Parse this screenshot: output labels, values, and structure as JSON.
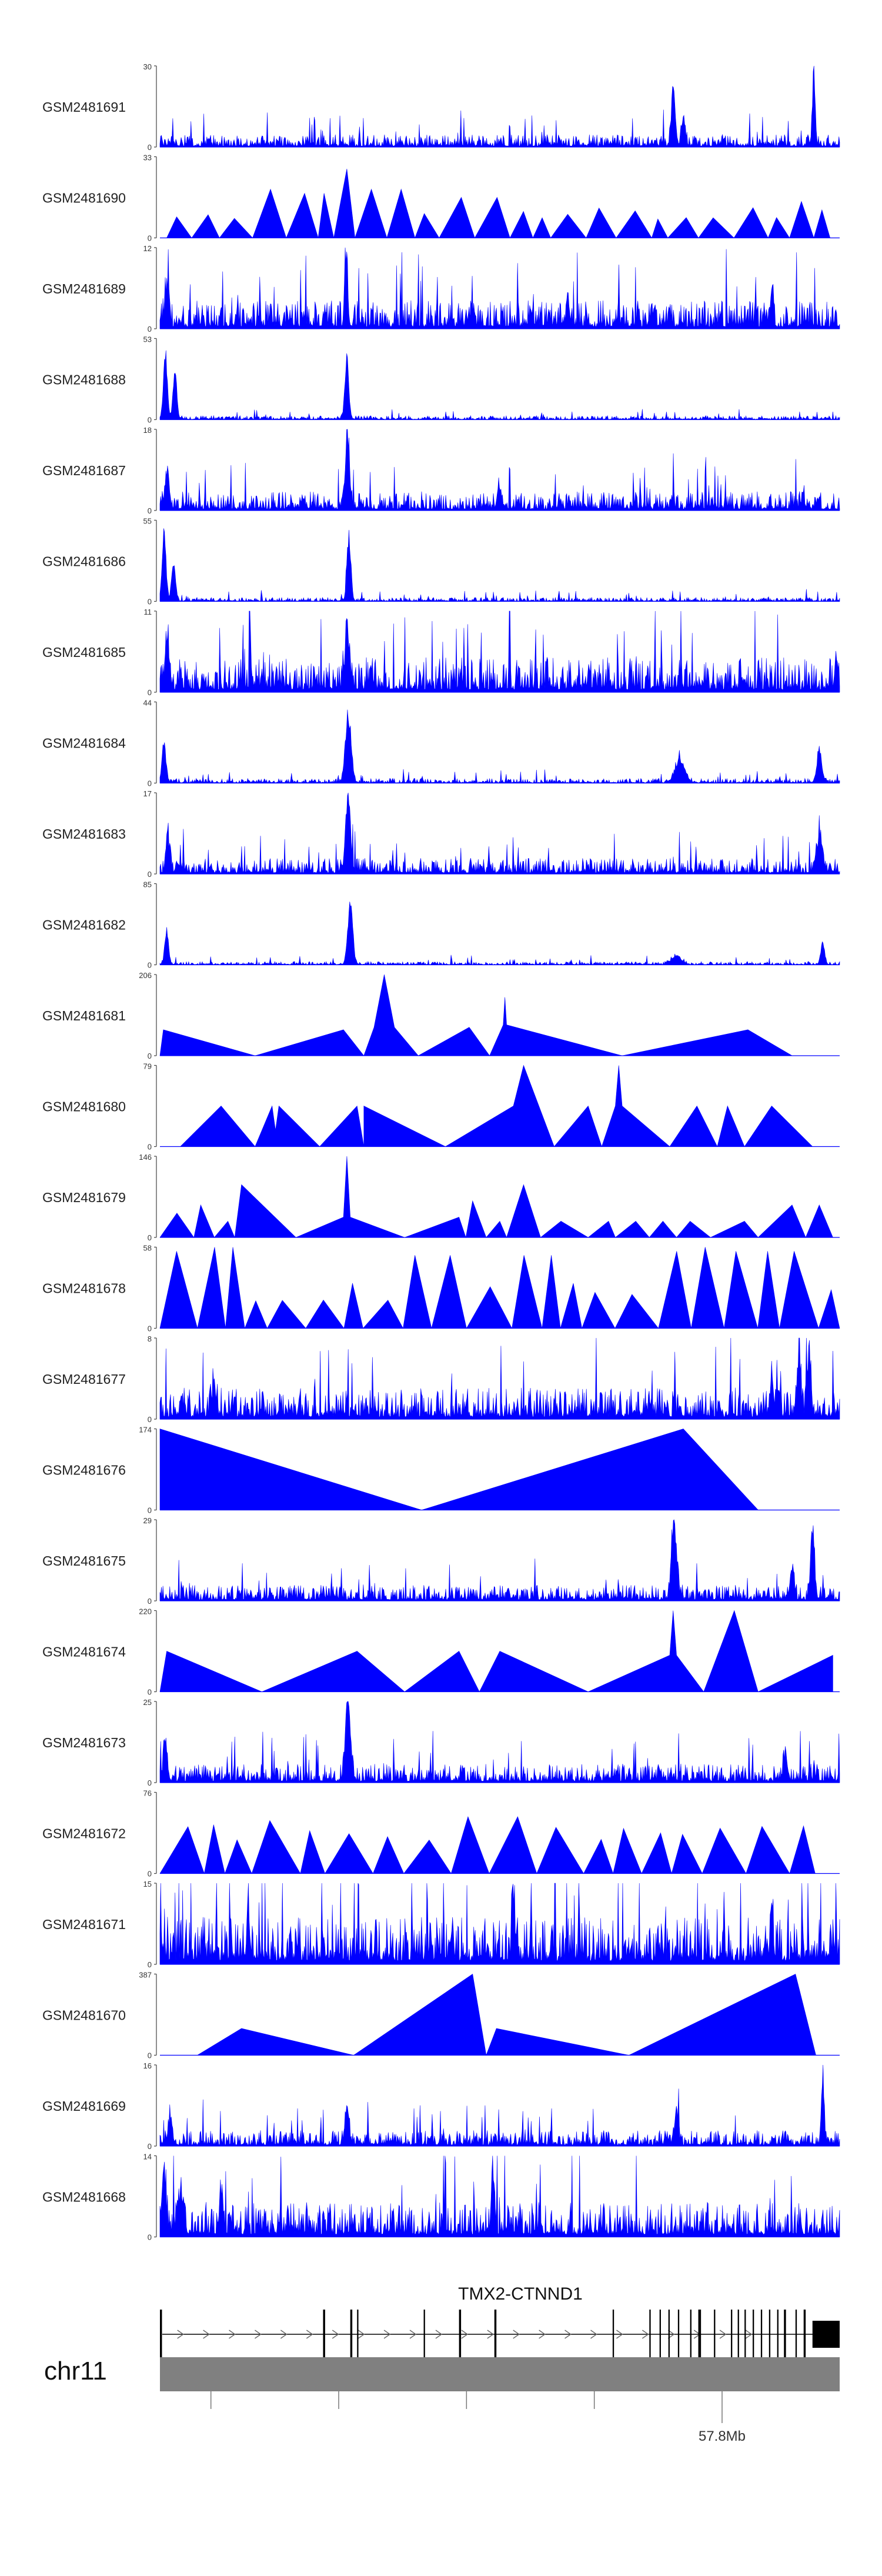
{
  "chart_data": {
    "type": "area",
    "title": "",
    "fill_color": "#0000ff",
    "tracks": [
      {
        "name": "GSM2481691",
        "ymax": 30,
        "profile": "spiky",
        "seed": 11,
        "baseline": 0.08,
        "peaks": [
          [
            0.755,
            0.75,
            0.004
          ],
          [
            0.962,
            1.0,
            0.003
          ],
          [
            0.77,
            0.35,
            0.004
          ]
        ]
      },
      {
        "name": "GSM2481690",
        "ymax": 33,
        "profile": "triangles",
        "seed": 12,
        "start": 0.01,
        "end": 1.0,
        "spacing": 0.035,
        "base_level": 0.3,
        "peaks": [
          [
            0.27,
            1.0
          ],
          [
            0.3,
            0.85
          ],
          [
            0.34,
            0.6
          ],
          [
            0.165,
            0.6
          ],
          [
            0.22,
            0.55
          ],
          [
            0.46,
            0.5
          ],
          [
            0.94,
            0.45
          ]
        ]
      },
      {
        "name": "GSM2481689",
        "ymax": 12,
        "profile": "spiky",
        "seed": 13,
        "baseline": 0.18,
        "peaks": [
          [
            0.274,
            1.0,
            0.003
          ],
          [
            0.01,
            0.55,
            0.004
          ],
          [
            0.6,
            0.45,
            0.003
          ],
          [
            0.9,
            0.4,
            0.003
          ]
        ]
      },
      {
        "name": "GSM2481688",
        "ymax": 53,
        "profile": "spiky",
        "seed": 14,
        "baseline": 0.025,
        "peaks": [
          [
            0.008,
            0.9,
            0.004
          ],
          [
            0.022,
            0.6,
            0.004
          ],
          [
            0.275,
            0.85,
            0.004
          ]
        ]
      },
      {
        "name": "GSM2481687",
        "ymax": 18,
        "profile": "spiky",
        "seed": 15,
        "baseline": 0.12,
        "peaks": [
          [
            0.276,
            1.0,
            0.004
          ],
          [
            0.01,
            0.5,
            0.004
          ],
          [
            0.5,
            0.3,
            0.004
          ]
        ]
      },
      {
        "name": "GSM2481686",
        "ymax": 55,
        "profile": "spiky",
        "seed": 16,
        "baseline": 0.025,
        "peaks": [
          [
            0.006,
            0.95,
            0.004
          ],
          [
            0.02,
            0.55,
            0.004
          ],
          [
            0.278,
            0.9,
            0.004
          ]
        ]
      },
      {
        "name": "GSM2481685",
        "ymax": 11,
        "profile": "spiky",
        "seed": 17,
        "baseline": 0.22,
        "peaks": [
          [
            0.275,
            0.85,
            0.004
          ],
          [
            0.01,
            0.7,
            0.004
          ],
          [
            0.995,
            0.45,
            0.003
          ]
        ]
      },
      {
        "name": "GSM2481684",
        "ymax": 44,
        "profile": "spiky",
        "seed": 18,
        "baseline": 0.03,
        "peaks": [
          [
            0.277,
            0.9,
            0.006
          ],
          [
            0.006,
            0.55,
            0.004
          ],
          [
            0.765,
            0.3,
            0.01
          ],
          [
            0.97,
            0.42,
            0.005
          ]
        ]
      },
      {
        "name": "GSM2481683",
        "ymax": 17,
        "profile": "spiky",
        "seed": 19,
        "baseline": 0.1,
        "peaks": [
          [
            0.277,
            1.0,
            0.005
          ],
          [
            0.012,
            0.45,
            0.004
          ],
          [
            0.97,
            0.45,
            0.006
          ]
        ]
      },
      {
        "name": "GSM2481682",
        "ymax": 85,
        "profile": "spiky",
        "seed": 20,
        "baseline": 0.02,
        "peaks": [
          [
            0.28,
            0.9,
            0.005
          ],
          [
            0.01,
            0.45,
            0.004
          ],
          [
            0.76,
            0.12,
            0.01
          ],
          [
            0.975,
            0.3,
            0.004
          ]
        ]
      },
      {
        "name": "GSM2481681",
        "ymax": 206,
        "profile": "polyline",
        "points": [
          [
            0.0,
            0.0
          ],
          [
            0.005,
            0.32
          ],
          [
            0.14,
            0.0
          ],
          [
            0.27,
            0.32
          ],
          [
            0.3,
            0.0
          ],
          [
            0.315,
            0.35
          ],
          [
            0.33,
            1.0
          ],
          [
            0.345,
            0.35
          ],
          [
            0.38,
            0.0
          ],
          [
            0.455,
            0.35
          ],
          [
            0.485,
            0.0
          ],
          [
            0.505,
            0.38
          ],
          [
            0.5075,
            0.72
          ],
          [
            0.51,
            0.38
          ],
          [
            0.68,
            0.0
          ],
          [
            0.865,
            0.32
          ],
          [
            0.93,
            0.0
          ]
        ]
      },
      {
        "name": "GSM2481680",
        "ymax": 79,
        "profile": "polyline",
        "points": [
          [
            0.0,
            0.0
          ],
          [
            0.03,
            0.0
          ],
          [
            0.09,
            0.5
          ],
          [
            0.14,
            0.0
          ],
          [
            0.165,
            0.5
          ],
          [
            0.17,
            0.2
          ],
          [
            0.175,
            0.5
          ],
          [
            0.235,
            0.0
          ],
          [
            0.29,
            0.5
          ],
          [
            0.3,
            0.0
          ],
          [
            0.3,
            0.5
          ],
          [
            0.42,
            0.0
          ],
          [
            0.52,
            0.5
          ],
          [
            0.535,
            1.0
          ],
          [
            0.58,
            0.0
          ],
          [
            0.63,
            0.5
          ],
          [
            0.65,
            0.0
          ],
          [
            0.67,
            0.5
          ],
          [
            0.675,
            1.0
          ],
          [
            0.68,
            0.5
          ],
          [
            0.75,
            0.0
          ],
          [
            0.79,
            0.5
          ],
          [
            0.82,
            0.0
          ],
          [
            0.835,
            0.5
          ],
          [
            0.86,
            0.0
          ],
          [
            0.9,
            0.5
          ],
          [
            0.96,
            0.0
          ]
        ]
      },
      {
        "name": "GSM2481679",
        "ymax": 146,
        "profile": "polyline",
        "points": [
          [
            0.0,
            0.0
          ],
          [
            0.025,
            0.3
          ],
          [
            0.05,
            0.0
          ],
          [
            0.06,
            0.4
          ],
          [
            0.08,
            0.0
          ],
          [
            0.1,
            0.2
          ],
          [
            0.11,
            0.0
          ],
          [
            0.12,
            0.65
          ],
          [
            0.2,
            0.0
          ],
          [
            0.27,
            0.25
          ],
          [
            0.275,
            1.0
          ],
          [
            0.28,
            0.25
          ],
          [
            0.36,
            0.0
          ],
          [
            0.44,
            0.25
          ],
          [
            0.45,
            0.0
          ],
          [
            0.46,
            0.45
          ],
          [
            0.48,
            0.0
          ],
          [
            0.5,
            0.2
          ],
          [
            0.51,
            0.0
          ],
          [
            0.535,
            0.65
          ],
          [
            0.56,
            0.0
          ],
          [
            0.59,
            0.2
          ],
          [
            0.63,
            0.0
          ],
          [
            0.66,
            0.2
          ],
          [
            0.67,
            0.0
          ],
          [
            0.7,
            0.2
          ],
          [
            0.72,
            0.0
          ],
          [
            0.74,
            0.2
          ],
          [
            0.76,
            0.0
          ],
          [
            0.78,
            0.2
          ],
          [
            0.81,
            0.0
          ],
          [
            0.86,
            0.2
          ],
          [
            0.88,
            0.0
          ],
          [
            0.93,
            0.4
          ],
          [
            0.95,
            0.0
          ],
          [
            0.97,
            0.4
          ],
          [
            0.99,
            0.0
          ]
        ]
      },
      {
        "name": "GSM2481678",
        "ymax": 58,
        "profile": "triangles",
        "seed": 21,
        "start": 0.0,
        "end": 1.0,
        "spacing": 0.045,
        "base_level": 0.45,
        "peaks": [
          [
            0.03,
            0.95
          ],
          [
            0.1,
            1.0
          ],
          [
            0.4,
            0.9
          ],
          [
            0.56,
            0.9
          ],
          [
            0.78,
            0.95
          ],
          [
            0.81,
            1.0
          ],
          [
            0.88,
            0.95
          ]
        ]
      },
      {
        "name": "GSM2481677",
        "ymax": 8,
        "profile": "spiky",
        "seed": 22,
        "baseline": 0.2,
        "peaks": [
          [
            0.94,
            0.85,
            0.004
          ],
          [
            0.955,
            0.75,
            0.004
          ],
          [
            0.9,
            0.5,
            0.004
          ],
          [
            0.08,
            0.4,
            0.004
          ]
        ]
      },
      {
        "name": "GSM2481676",
        "ymax": 174,
        "profile": "polyline",
        "points": [
          [
            0.0,
            0.0
          ],
          [
            0.0,
            1.0
          ],
          [
            0.385,
            0.0
          ],
          [
            0.77,
            1.0
          ],
          [
            0.88,
            0.0
          ]
        ]
      },
      {
        "name": "GSM2481675",
        "ymax": 29,
        "profile": "spiky",
        "seed": 23,
        "baseline": 0.1,
        "peaks": [
          [
            0.755,
            0.95,
            0.004
          ],
          [
            0.96,
            0.95,
            0.004
          ],
          [
            0.76,
            0.45,
            0.004
          ],
          [
            0.93,
            0.35,
            0.004
          ]
        ]
      },
      {
        "name": "GSM2481674",
        "ymax": 220,
        "profile": "polyline",
        "points": [
          [
            0.0,
            0.0
          ],
          [
            0.01,
            0.5
          ],
          [
            0.15,
            0.0
          ],
          [
            0.29,
            0.5
          ],
          [
            0.36,
            0.0
          ],
          [
            0.44,
            0.5
          ],
          [
            0.47,
            0.0
          ],
          [
            0.5,
            0.5
          ],
          [
            0.63,
            0.0
          ],
          [
            0.75,
            0.45
          ],
          [
            0.755,
            1.0
          ],
          [
            0.76,
            0.45
          ],
          [
            0.8,
            0.0
          ],
          [
            0.845,
            1.0
          ],
          [
            0.88,
            0.0
          ],
          [
            0.88,
            0.0
          ],
          [
            0.99,
            0.45
          ],
          [
            0.99,
            0.0
          ]
        ]
      },
      {
        "name": "GSM2481673",
        "ymax": 25,
        "profile": "spiky",
        "seed": 24,
        "baseline": 0.12,
        "peaks": [
          [
            0.275,
            1.0,
            0.004
          ],
          [
            0.008,
            0.55,
            0.004
          ],
          [
            0.28,
            0.5,
            0.004
          ],
          [
            0.92,
            0.35,
            0.004
          ]
        ]
      },
      {
        "name": "GSM2481672",
        "ymax": 76,
        "profile": "triangles",
        "seed": 25,
        "start": 0.0,
        "end": 0.99,
        "spacing": 0.05,
        "base_level": 0.55,
        "peaks": [
          [
            0.47,
            1.0
          ],
          [
            0.5,
            0.7
          ]
        ]
      },
      {
        "name": "GSM2481671",
        "ymax": 15,
        "profile": "spiky",
        "seed": 26,
        "baseline": 0.3,
        "peaks": [
          [
            0.52,
            0.95,
            0.003
          ],
          [
            0.9,
            0.75,
            0.003
          ],
          [
            0.13,
            0.7,
            0.003
          ]
        ]
      },
      {
        "name": "GSM2481670",
        "ymax": 387,
        "profile": "polyline",
        "points": [
          [
            0.0,
            0.0
          ],
          [
            0.055,
            0.0
          ],
          [
            0.12,
            0.33
          ],
          [
            0.285,
            0.0
          ],
          [
            0.46,
            1.0
          ],
          [
            0.48,
            0.0
          ],
          [
            0.495,
            0.33
          ],
          [
            0.69,
            0.0
          ],
          [
            0.935,
            1.0
          ],
          [
            0.965,
            0.0
          ]
        ]
      },
      {
        "name": "GSM2481669",
        "ymax": 16,
        "profile": "spiky",
        "seed": 27,
        "baseline": 0.1,
        "peaks": [
          [
            0.975,
            1.0,
            0.003
          ],
          [
            0.275,
            0.5,
            0.004
          ],
          [
            0.76,
            0.45,
            0.004
          ],
          [
            0.015,
            0.4,
            0.004
          ]
        ]
      },
      {
        "name": "GSM2481668",
        "ymax": 14,
        "profile": "spiky",
        "seed": 28,
        "baseline": 0.22,
        "peaks": [
          [
            0.49,
            0.92,
            0.003
          ],
          [
            0.006,
            0.85,
            0.004
          ],
          [
            0.03,
            0.5,
            0.006
          ],
          [
            0.09,
            0.45,
            0.004
          ]
        ]
      }
    ],
    "gene": {
      "name": "TMX2-CTNND1",
      "strand": "+",
      "exons": [
        [
          0.0,
          0.003
        ],
        [
          0.24,
          0.243
        ],
        [
          0.28,
          0.283
        ],
        [
          0.29,
          0.292
        ],
        [
          0.388,
          0.39
        ],
        [
          0.44,
          0.443
        ],
        [
          0.492,
          0.495
        ],
        [
          0.666,
          0.668
        ],
        [
          0.72,
          0.722
        ],
        [
          0.735,
          0.737
        ],
        [
          0.748,
          0.75
        ],
        [
          0.762,
          0.764
        ],
        [
          0.78,
          0.782
        ],
        [
          0.792,
          0.796
        ],
        [
          0.815,
          0.817
        ],
        [
          0.84,
          0.842
        ],
        [
          0.85,
          0.852
        ],
        [
          0.86,
          0.862
        ],
        [
          0.872,
          0.874
        ],
        [
          0.884,
          0.886
        ],
        [
          0.896,
          0.898
        ],
        [
          0.908,
          0.91
        ],
        [
          0.918,
          0.921
        ],
        [
          0.935,
          0.937
        ],
        [
          0.947,
          0.95
        ],
        [
          0.96,
          1.0
        ]
      ]
    },
    "chromosome": {
      "name": "chr11",
      "tick_positions": [
        0.075,
        0.263,
        0.451,
        0.639,
        0.827
      ],
      "tick_label": "57.8Mb",
      "labeled_tick": 4
    }
  }
}
